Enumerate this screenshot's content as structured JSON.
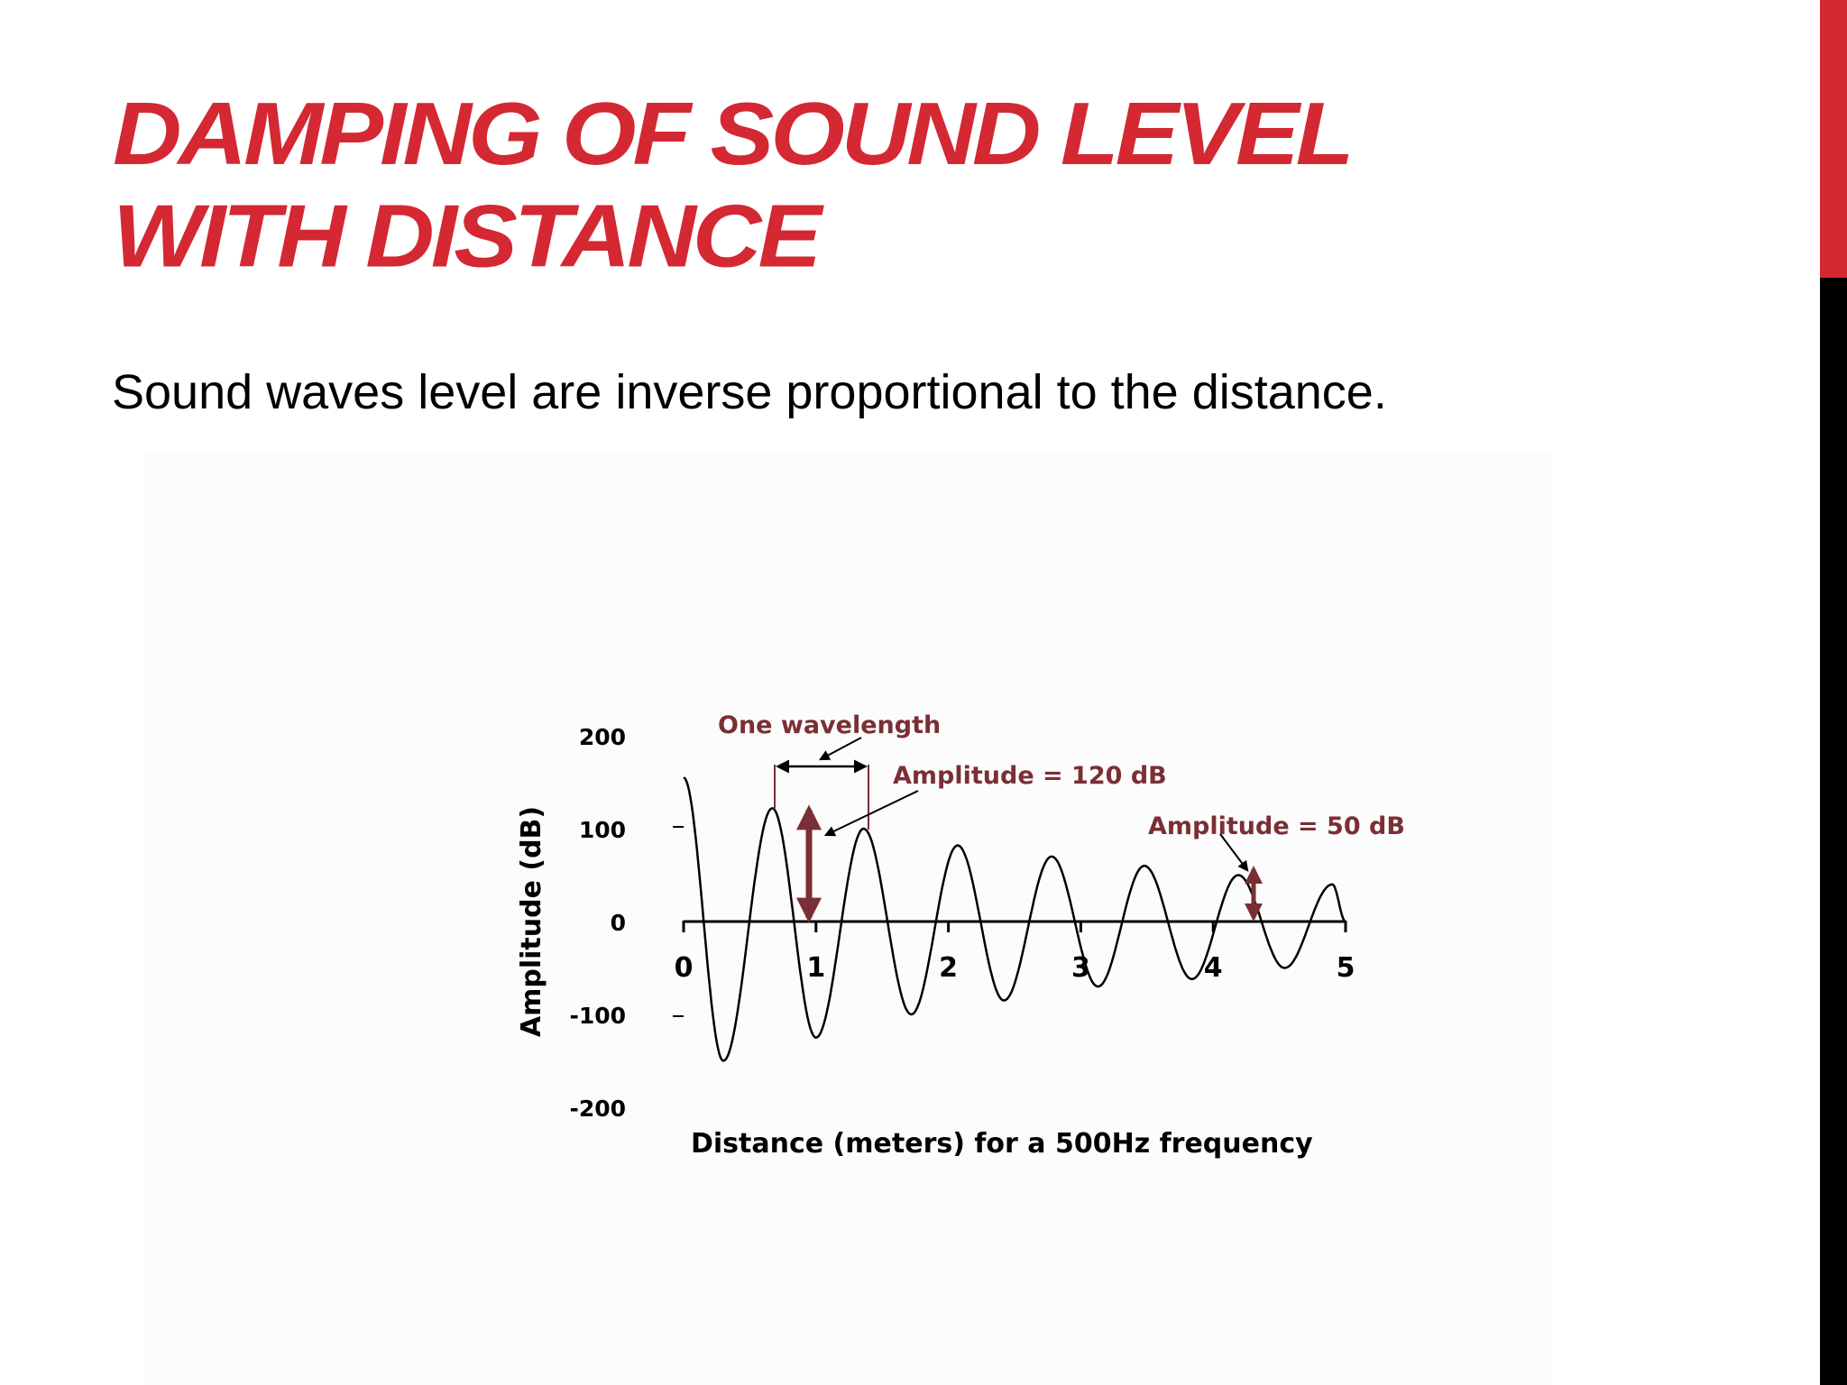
{
  "slide": {
    "title_lines": [
      "DAMPING OF SOUND LEVEL",
      "WITH DISTANCE"
    ],
    "body_text": "Sound waves level are inverse proportional to the distance.",
    "accent_color": "#d42833",
    "sidebar_colors": [
      "#d42833",
      "#000000"
    ]
  },
  "chart_data": {
    "type": "line",
    "title": "",
    "xlabel": "Distance (meters) for a 500Hz frequency",
    "ylabel": "Amplitude (dB)",
    "xlim": [
      0,
      5
    ],
    "ylim": [
      -200,
      200
    ],
    "x_ticks": [
      "0",
      "1",
      "2",
      "3",
      "4",
      "5"
    ],
    "y_ticks": [
      "200",
      "100",
      "0",
      "-100",
      "-200"
    ],
    "grid": false,
    "legend": "none",
    "series": [
      {
        "x": [
          0,
          0.3,
          0.67,
          1.0,
          1.36,
          1.72,
          2.07,
          2.42,
          2.78,
          3.13,
          3.48,
          3.84,
          4.19,
          4.54,
          4.9,
          5.0
        ],
        "y": [
          155,
          -150,
          122,
          -125,
          100,
          -100,
          82,
          -85,
          70,
          -70,
          60,
          -62,
          50,
          -50,
          40,
          0
        ]
      }
    ],
    "annotations": [
      {
        "text": "One wavelength",
        "color": "#7a2f35"
      },
      {
        "text": "Amplitude = 120 dB",
        "color": "#7a2f35"
      },
      {
        "text": "Amplitude = 50 dB",
        "color": "#7a2f35"
      }
    ],
    "wave_color": "#000000",
    "arrow_color": "#7a2f35"
  }
}
